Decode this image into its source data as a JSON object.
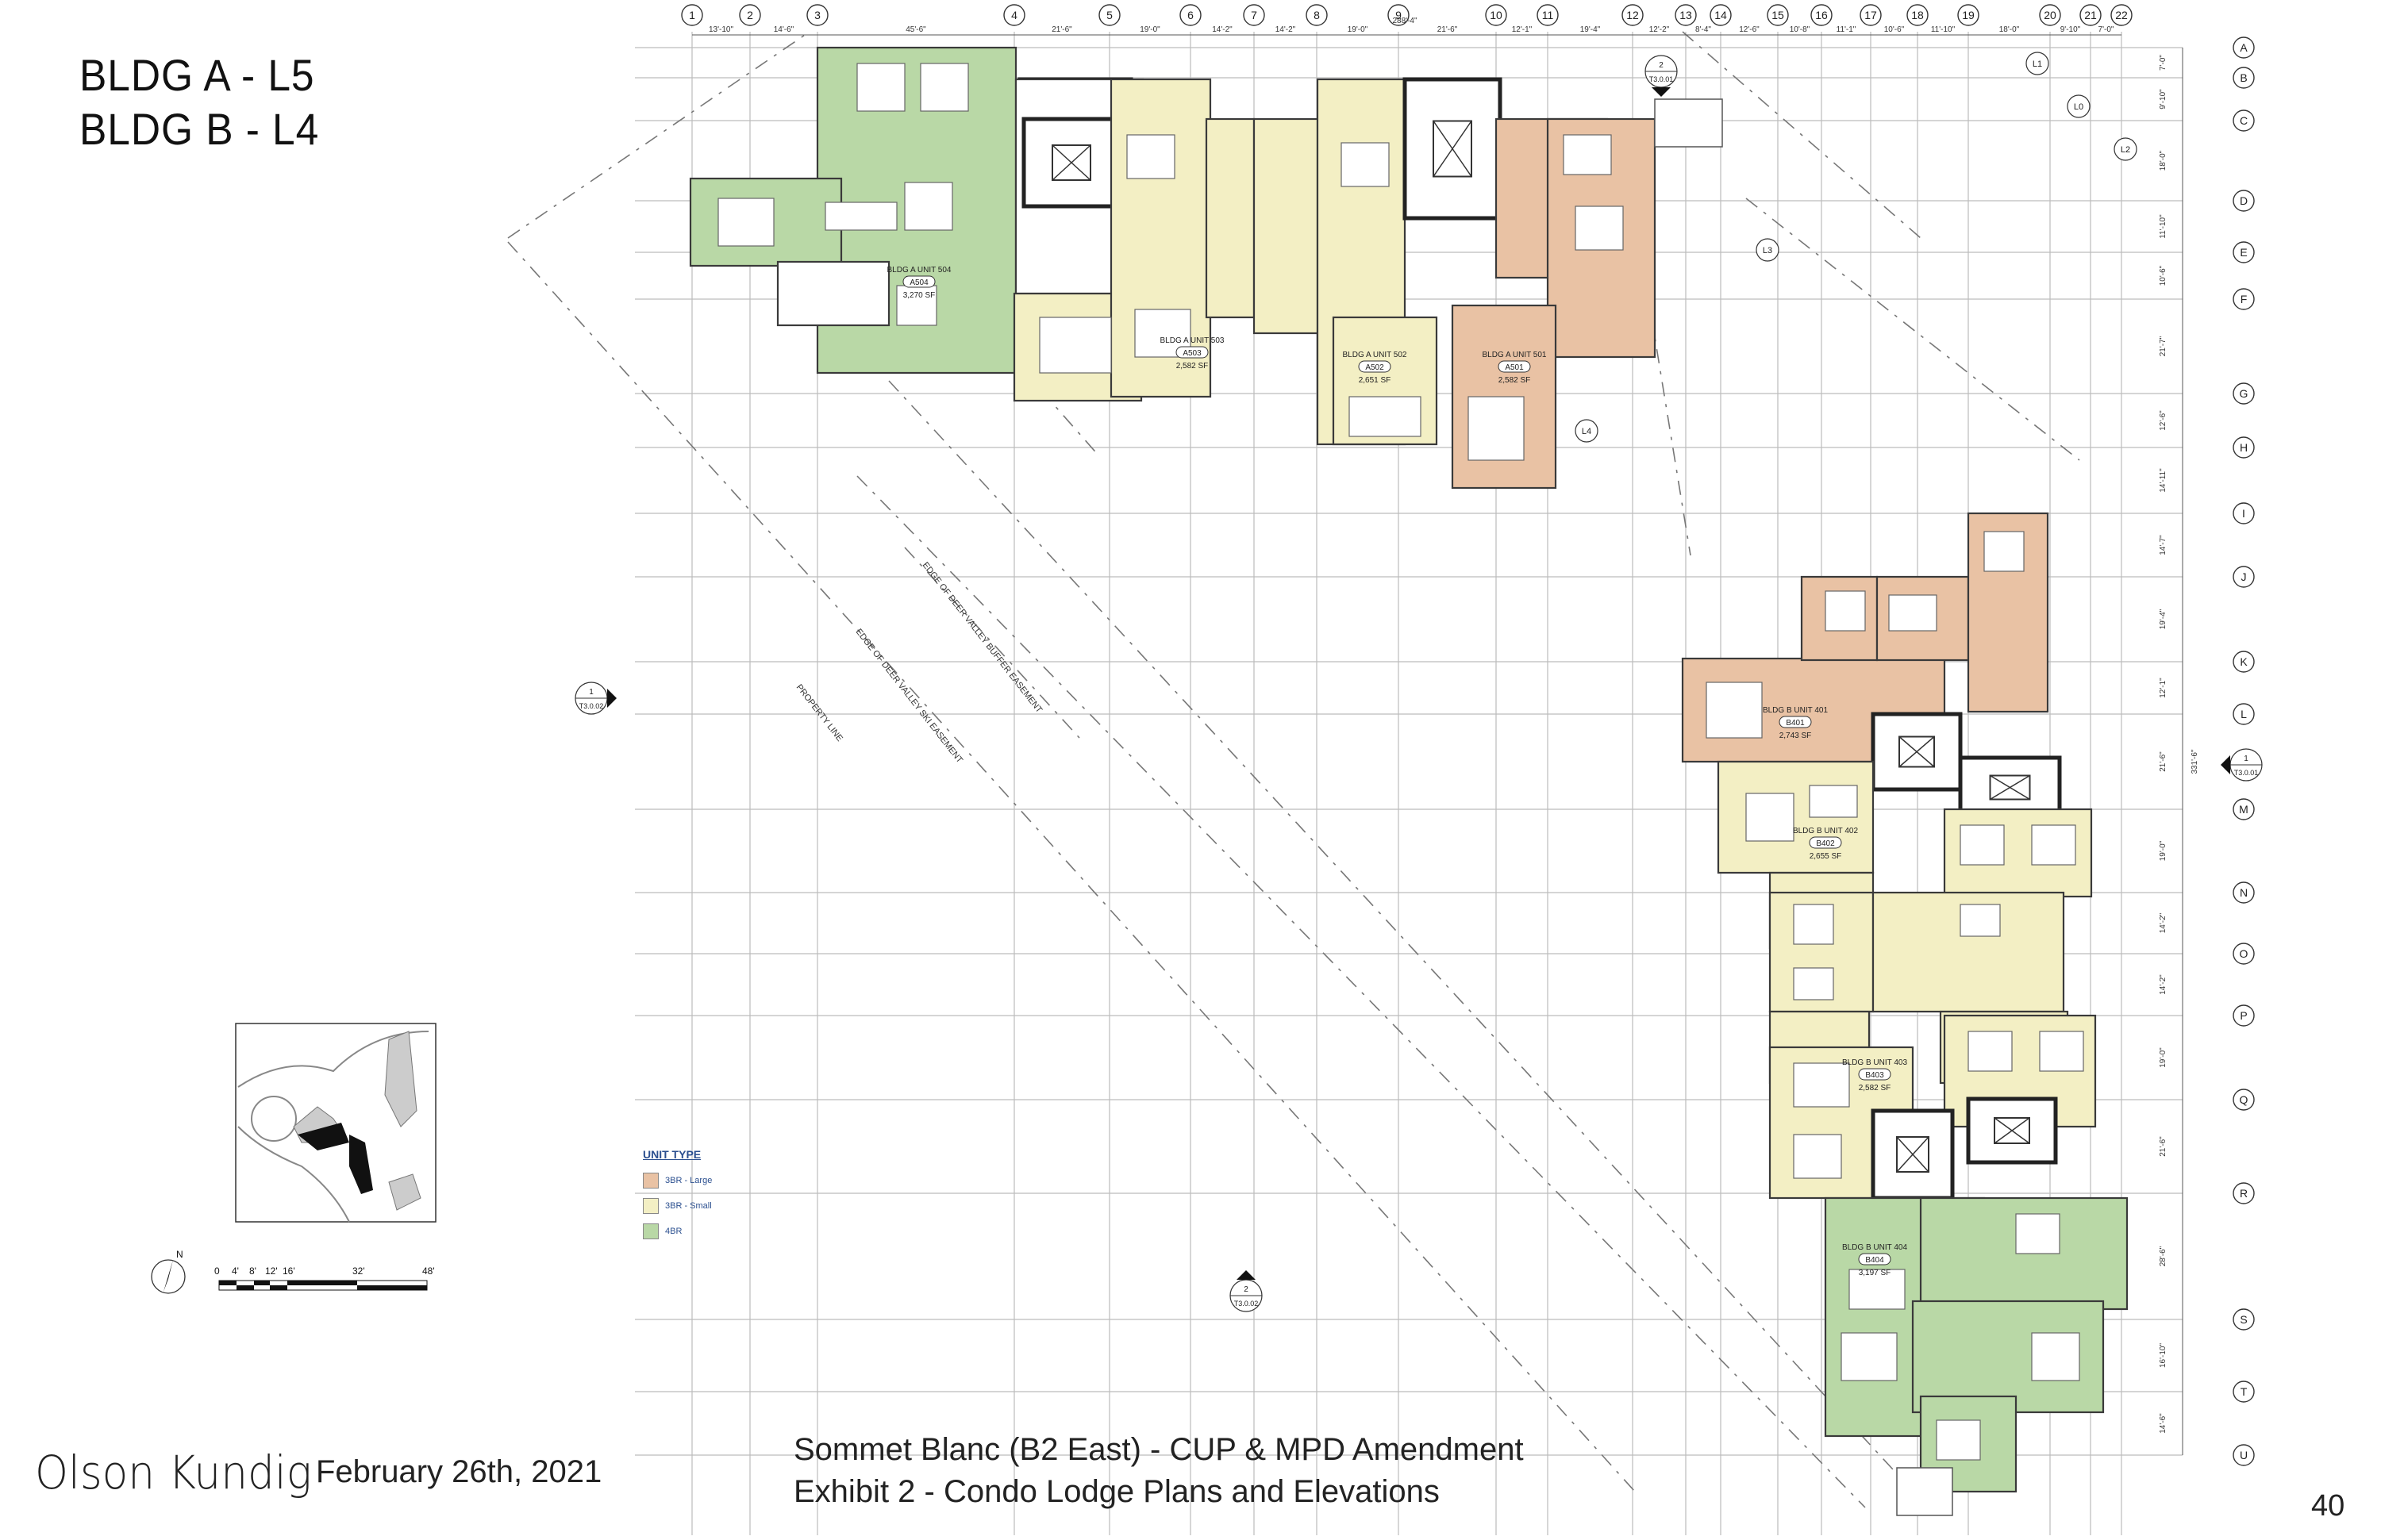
{
  "titles": {
    "line1": "BLDG A - L5",
    "line2": "BLDG B - L4"
  },
  "footer": {
    "brand": "Olson Kundig",
    "date": "February 26th, 2021",
    "project_line1": "Sommet Blanc (B2 East) - CUP & MPD Amendment",
    "project_line2": "Exhibit 2 - Condo Lodge Plans and Elevations",
    "page_number": "40"
  },
  "legend": {
    "title": "UNIT TYPE",
    "items": [
      {
        "label": "3BR - Large",
        "color": "#e9c2a4"
      },
      {
        "label": "3BR - Small",
        "color": "#f3efc4"
      },
      {
        "label": "4BR",
        "color": "#b9d8a6"
      }
    ]
  },
  "colors": {
    "large": "#e9c2a4",
    "small": "#f3efc4",
    "four": "#b9d8a6",
    "line": "#444444",
    "grid": "#bcbcbc"
  },
  "grid_columns": [
    "1",
    "2",
    "3",
    "4",
    "5",
    "6",
    "7",
    "8",
    "9",
    "10",
    "11",
    "12",
    "13",
    "14",
    "15",
    "16",
    "17",
    "18",
    "19",
    "20",
    "21",
    "22"
  ],
  "grid_rows": [
    "A",
    "B",
    "C",
    "D",
    "E",
    "F",
    "G",
    "H",
    "I",
    "J",
    "K",
    "L",
    "M",
    "N",
    "O",
    "P",
    "Q",
    "R",
    "S",
    "T",
    "U"
  ],
  "column_dims": [
    "13'-10\"",
    "14'-6\"",
    "45'-6\"",
    "21'-6\"",
    "19'-0\"",
    "14'-2\"",
    "14'-2\"",
    "19'-0\"",
    "21'-6\"",
    "12'-1\"",
    "19'-4\"",
    "12'-2\"",
    "8'-4\"",
    "12'-6\"",
    "10'-8\"",
    "11'-1\"",
    "10'-6\"",
    "11'-10\"",
    "18'-0\"",
    "9'-10\"",
    "7'-0\""
  ],
  "overall_dim_top": "288'-4\"",
  "row_dims": [
    "7'-0\"",
    "9'-10\"",
    "18'-0\"",
    "11'-10\"",
    "10'-6\"",
    "21'-7\"",
    "12'-6\"",
    "14'-11\"",
    "14'-7\"",
    "19'-4\"",
    "12'-1\"",
    "21'-6\"",
    "19'-0\"",
    "14'-2\"",
    "14'-2\"",
    "19'-0\"",
    "21'-6\"",
    "28'-6\"",
    "16'-10\"",
    "14'-6\""
  ],
  "overall_dim_right": "331'-6\"",
  "units": {
    "a501": {
      "name": "BLDG A UNIT 501",
      "tag": "A501",
      "area": "2,582 SF"
    },
    "a502": {
      "name": "BLDG A UNIT 502",
      "tag": "A502",
      "area": "2,651 SF"
    },
    "a503": {
      "name": "BLDG A UNIT 503",
      "tag": "A503",
      "area": "2,582 SF"
    },
    "a504": {
      "name": "BLDG A UNIT 504",
      "tag": "A504",
      "area": "3,270 SF"
    },
    "b401": {
      "name": "BLDG B UNIT 401",
      "tag": "B401",
      "area": "2,743 SF"
    },
    "b402": {
      "name": "BLDG B UNIT 402",
      "tag": "B402",
      "area": "2,655 SF"
    },
    "b403": {
      "name": "BLDG B UNIT 403",
      "tag": "B403",
      "area": "2,582 SF"
    },
    "b404": {
      "name": "BLDG B UNIT 404",
      "tag": "B404",
      "area": "3,197 SF"
    }
  },
  "level_tags": [
    "L0",
    "L1",
    "L2",
    "L3",
    "L4"
  ],
  "easements": {
    "buffer": "EDGE OF DEER VALLEY BUFFER EASEMENT",
    "ski": "EDGE OF DEER VALLEY SKI EASEMENT",
    "property": "PROPERTY LINE"
  },
  "section_marks": [
    {
      "num": "1",
      "ref": "T3.0.02"
    },
    {
      "num": "2",
      "ref": "T3.0.02"
    },
    {
      "num": "1",
      "ref": "T3.0.01"
    },
    {
      "num": "2",
      "ref": "T3.0.01"
    }
  ],
  "scale": {
    "labels": [
      "0",
      "4'",
      "8'",
      "12'",
      "16'",
      "32'",
      "48'"
    ],
    "north": "N"
  }
}
